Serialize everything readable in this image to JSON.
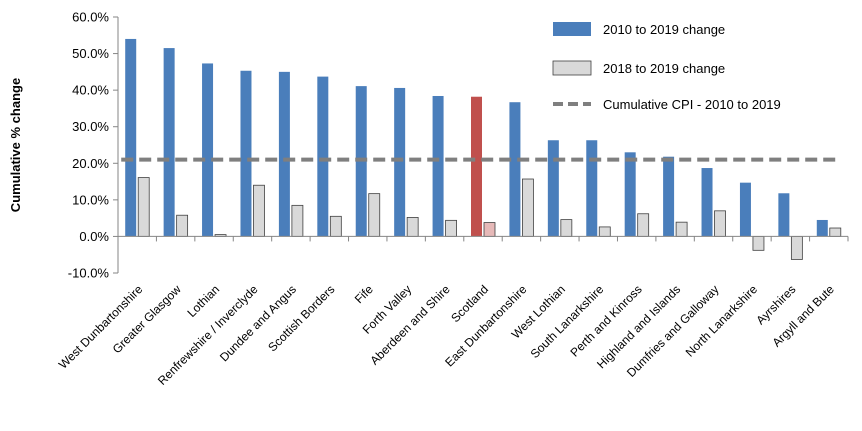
{
  "chart_data": {
    "type": "bar",
    "title": "",
    "xlabel": "",
    "ylabel": "Cumulative % change",
    "ylim": [
      -0.1,
      0.6
    ],
    "yticks": [
      {
        "value": -0.1,
        "label": "-10.0%"
      },
      {
        "value": 0.0,
        "label": "0.0%"
      },
      {
        "value": 0.1,
        "label": "10.0%"
      },
      {
        "value": 0.2,
        "label": "20.0%"
      },
      {
        "value": 0.3,
        "label": "30.0%"
      },
      {
        "value": 0.4,
        "label": "40.0%"
      },
      {
        "value": 0.5,
        "label": "50.0%"
      },
      {
        "value": 0.6,
        "label": "60.0%"
      }
    ],
    "categories": [
      "West Dunbartonshire",
      "Greater Glasgow",
      "Lothian",
      "Renfrewshire / Inverclyde",
      "Dundee and Angus",
      "Scottish Borders",
      "Fife",
      "Forth Valley",
      "Aberdeen and Shire",
      "Scotland",
      "East Dunbartonshire",
      "West Lothian",
      "South Lanarkshire",
      "Perth and Kinross",
      "Highland and Islands",
      "Dumfries and Galloway",
      "North Lanarkshire",
      "Ayrshires",
      "Argyll and Bute"
    ],
    "series": [
      {
        "name": "2010 to 2019 change",
        "color": "#4a7ebb",
        "highlight_color": "#c0504d",
        "highlight_index": 9,
        "values": [
          0.54,
          0.515,
          0.473,
          0.453,
          0.45,
          0.437,
          0.411,
          0.406,
          0.384,
          0.382,
          0.367,
          0.263,
          0.263,
          0.23,
          0.218,
          0.187,
          0.147,
          0.118,
          0.045
        ]
      },
      {
        "name": "2018 to 2019 change",
        "color": "#d9d9d9",
        "highlight_color": "#e6b9b8",
        "highlight_index": 9,
        "values": [
          0.161,
          0.058,
          0.005,
          0.14,
          0.085,
          0.055,
          0.117,
          0.052,
          0.044,
          0.038,
          0.157,
          0.046,
          0.026,
          0.062,
          0.039,
          0.07,
          -0.038,
          -0.063,
          0.023
        ]
      }
    ],
    "reference_line": {
      "name": "Cumulative CPI - 2010 to 2019",
      "value": 0.21,
      "color": "#7f7f7f",
      "style": "dashed"
    },
    "legend_position": "top-right",
    "grid": false
  }
}
